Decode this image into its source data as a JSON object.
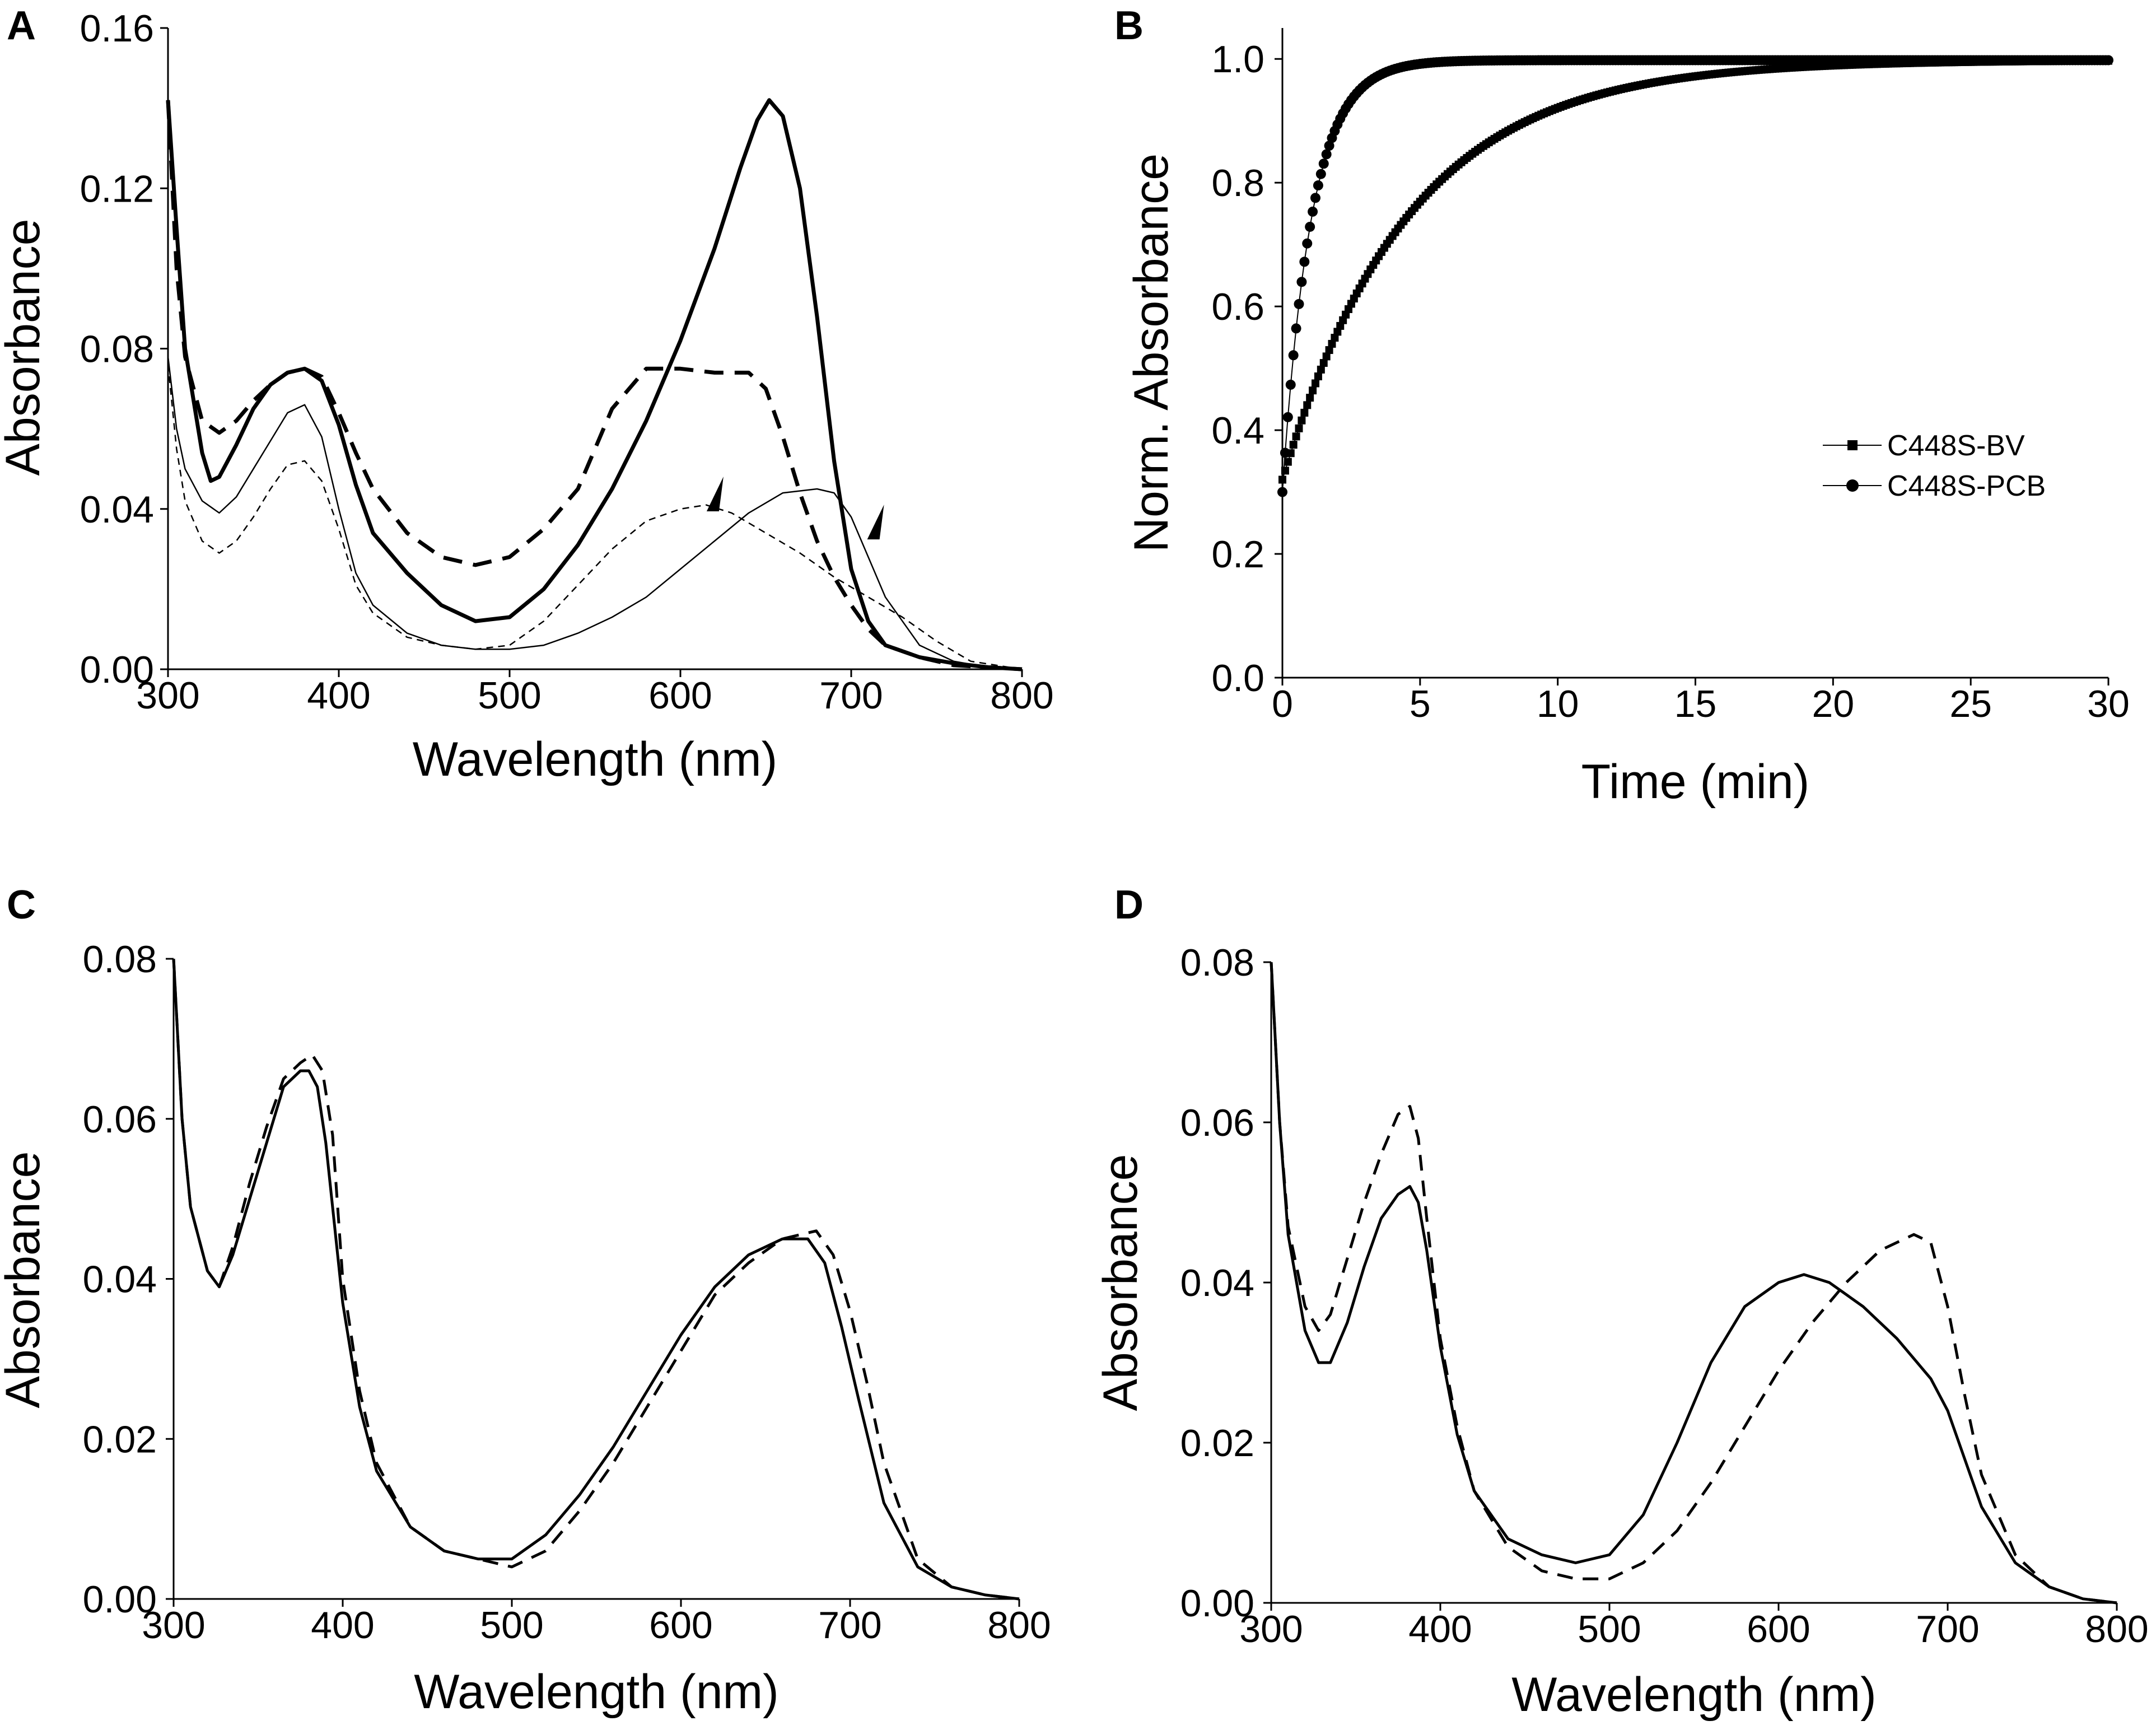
{
  "chart_data": [
    {
      "panel": "A",
      "type": "line",
      "xlabel": "Wavelength (nm)",
      "ylabel": "Absorbance",
      "xlim": [
        300,
        800
      ],
      "ylim": [
        0,
        0.16
      ],
      "xticks": [
        300,
        400,
        500,
        600,
        700,
        800
      ],
      "yticks": [
        0.0,
        0.04,
        0.08,
        0.12,
        0.16
      ],
      "xtick_labels": [
        "300",
        "400",
        "500",
        "600",
        "700",
        "800"
      ],
      "ytick_labels": [
        "0.00",
        "0.04",
        "0.08",
        "0.12",
        "0.16"
      ],
      "series": [
        {
          "name": "thick solid",
          "style": "thick-solid",
          "x": [
            300,
            305,
            310,
            320,
            325,
            330,
            340,
            350,
            360,
            370,
            380,
            390,
            400,
            410,
            420,
            440,
            460,
            480,
            500,
            520,
            540,
            560,
            580,
            600,
            620,
            635,
            645,
            652,
            660,
            670,
            680,
            690,
            700,
            710,
            720,
            740,
            760,
            780,
            800
          ],
          "y": [
            0.142,
            0.11,
            0.08,
            0.054,
            0.047,
            0.048,
            0.056,
            0.065,
            0.071,
            0.074,
            0.075,
            0.072,
            0.061,
            0.046,
            0.034,
            0.024,
            0.016,
            0.012,
            0.013,
            0.02,
            0.031,
            0.045,
            0.062,
            0.082,
            0.105,
            0.125,
            0.137,
            0.142,
            0.138,
            0.12,
            0.088,
            0.052,
            0.025,
            0.012,
            0.006,
            0.003,
            0.0015,
            0.0005,
            0
          ]
        },
        {
          "name": "thick dashed",
          "style": "thick-dashed",
          "x": [
            300,
            305,
            310,
            320,
            330,
            340,
            350,
            360,
            370,
            380,
            390,
            400,
            410,
            420,
            440,
            460,
            480,
            500,
            520,
            540,
            560,
            580,
            600,
            620,
            640,
            650,
            660,
            670,
            680,
            690,
            700,
            710,
            720,
            740,
            760,
            780,
            800
          ],
          "y": [
            0.142,
            0.1,
            0.078,
            0.062,
            0.059,
            0.062,
            0.067,
            0.071,
            0.074,
            0.075,
            0.073,
            0.064,
            0.054,
            0.045,
            0.034,
            0.028,
            0.026,
            0.028,
            0.035,
            0.045,
            0.065,
            0.075,
            0.075,
            0.074,
            0.074,
            0.07,
            0.058,
            0.044,
            0.032,
            0.023,
            0.016,
            0.01,
            0.006,
            0.003,
            0.001,
            0.0005,
            0
          ]
        },
        {
          "name": "thin solid",
          "style": "thin-solid",
          "x": [
            300,
            305,
            310,
            320,
            330,
            340,
            350,
            360,
            370,
            380,
            390,
            400,
            410,
            420,
            440,
            460,
            480,
            500,
            520,
            540,
            560,
            580,
            600,
            620,
            640,
            660,
            680,
            690,
            700,
            710,
            720,
            740,
            760,
            780,
            800
          ],
          "y": [
            0.078,
            0.06,
            0.05,
            0.042,
            0.039,
            0.043,
            0.05,
            0.057,
            0.064,
            0.066,
            0.058,
            0.04,
            0.024,
            0.016,
            0.009,
            0.006,
            0.005,
            0.005,
            0.006,
            0.009,
            0.013,
            0.018,
            0.025,
            0.032,
            0.039,
            0.044,
            0.045,
            0.044,
            0.038,
            0.028,
            0.018,
            0.006,
            0.002,
            0.0005,
            0
          ]
        },
        {
          "name": "thin dashed",
          "style": "thin-dashed",
          "x": [
            300,
            305,
            310,
            320,
            330,
            340,
            350,
            360,
            370,
            380,
            390,
            400,
            410,
            420,
            440,
            460,
            480,
            500,
            520,
            540,
            560,
            580,
            600,
            615,
            630,
            650,
            670,
            690,
            710,
            730,
            750,
            770,
            800
          ],
          "y": [
            0.076,
            0.055,
            0.042,
            0.032,
            0.029,
            0.032,
            0.038,
            0.045,
            0.051,
            0.052,
            0.047,
            0.035,
            0.021,
            0.014,
            0.008,
            0.006,
            0.005,
            0.006,
            0.012,
            0.021,
            0.03,
            0.037,
            0.04,
            0.041,
            0.039,
            0.034,
            0.029,
            0.023,
            0.018,
            0.013,
            0.007,
            0.002,
            0
          ]
        }
      ],
      "annotations": [
        {
          "text": "arrowhead",
          "x": 618,
          "y": 0.045
        },
        {
          "text": "arrowhead",
          "x": 712,
          "y": 0.038
        }
      ]
    },
    {
      "panel": "B",
      "type": "scatter",
      "xlabel": "Time (min)",
      "ylabel": "Norm. Absorbance",
      "xlim": [
        0,
        30
      ],
      "ylim": [
        0,
        1.05
      ],
      "xticks": [
        0,
        5,
        10,
        15,
        20,
        25,
        30
      ],
      "yticks": [
        0.0,
        0.2,
        0.4,
        0.6,
        0.8,
        1.0
      ],
      "xtick_labels": [
        "0",
        "5",
        "10",
        "15",
        "20",
        "25",
        "30"
      ],
      "ytick_labels": [
        "0.0",
        "0.2",
        "0.4",
        "0.6",
        "0.8",
        "1.0"
      ],
      "legend_position": "right-middle",
      "series": [
        {
          "name": "C448S-BV",
          "marker": "square",
          "model": "exponential",
          "y0": 0.32,
          "yinf": 0.998,
          "tau_min": 4.6,
          "t_max": 30,
          "n_points": 300
        },
        {
          "name": "C448S-PCB",
          "marker": "circle",
          "model": "exponential",
          "y0": 0.3,
          "yinf": 0.998,
          "tau_min": 1.05,
          "t_max": 30,
          "n_points": 300
        }
      ]
    },
    {
      "panel": "C",
      "type": "line",
      "xlabel": "Wavelength (nm)",
      "ylabel": "Absorbance",
      "xlim": [
        300,
        800
      ],
      "ylim": [
        0,
        0.08
      ],
      "xticks": [
        300,
        400,
        500,
        600,
        700,
        800
      ],
      "yticks": [
        0.0,
        0.02,
        0.04,
        0.06,
        0.08
      ],
      "xtick_labels": [
        "300",
        "400",
        "500",
        "600",
        "700",
        "800"
      ],
      "ytick_labels": [
        "0.00",
        "0.02",
        "0.04",
        "0.06",
        "0.08"
      ],
      "series": [
        {
          "name": "solid",
          "style": "solid",
          "x": [
            300,
            305,
            310,
            320,
            327,
            335,
            345,
            355,
            365,
            375,
            380,
            385,
            390,
            400,
            410,
            420,
            440,
            460,
            480,
            500,
            520,
            540,
            560,
            580,
            600,
            620,
            640,
            660,
            675,
            685,
            695,
            705,
            720,
            740,
            760,
            780,
            800
          ],
          "y": [
            0.08,
            0.06,
            0.049,
            0.041,
            0.039,
            0.043,
            0.05,
            0.057,
            0.064,
            0.066,
            0.066,
            0.064,
            0.057,
            0.037,
            0.024,
            0.016,
            0.009,
            0.006,
            0.005,
            0.005,
            0.008,
            0.013,
            0.019,
            0.026,
            0.033,
            0.039,
            0.043,
            0.045,
            0.045,
            0.042,
            0.034,
            0.025,
            0.012,
            0.004,
            0.0015,
            0.0005,
            0
          ]
        },
        {
          "name": "dashed",
          "style": "dashed",
          "x": [
            300,
            305,
            310,
            320,
            327,
            335,
            345,
            355,
            365,
            375,
            382,
            388,
            394,
            400,
            410,
            420,
            440,
            460,
            480,
            500,
            520,
            540,
            560,
            580,
            600,
            620,
            640,
            660,
            680,
            690,
            700,
            710,
            720,
            740,
            760,
            780,
            800
          ],
          "y": [
            0.08,
            0.06,
            0.049,
            0.041,
            0.039,
            0.044,
            0.052,
            0.059,
            0.065,
            0.067,
            0.068,
            0.066,
            0.058,
            0.04,
            0.026,
            0.017,
            0.009,
            0.006,
            0.005,
            0.004,
            0.006,
            0.011,
            0.017,
            0.024,
            0.031,
            0.038,
            0.042,
            0.045,
            0.046,
            0.043,
            0.036,
            0.027,
            0.017,
            0.005,
            0.0015,
            0.0005,
            0
          ]
        }
      ]
    },
    {
      "panel": "D",
      "type": "line",
      "xlabel": "Wavelength (nm)",
      "ylabel": "Absorbance",
      "xlim": [
        300,
        800
      ],
      "ylim": [
        0,
        0.08
      ],
      "xticks": [
        300,
        400,
        500,
        600,
        700,
        800
      ],
      "yticks": [
        0.0,
        0.02,
        0.04,
        0.06,
        0.08
      ],
      "xtick_labels": [
        "300",
        "400",
        "500",
        "600",
        "700",
        "800"
      ],
      "ytick_labels": [
        "0.00",
        "0.02",
        "0.04",
        "0.06",
        "0.08"
      ],
      "series": [
        {
          "name": "solid",
          "style": "solid",
          "x": [
            300,
            305,
            310,
            320,
            328,
            335,
            345,
            355,
            365,
            375,
            382,
            387,
            392,
            400,
            410,
            420,
            440,
            460,
            480,
            500,
            520,
            540,
            560,
            580,
            600,
            615,
            630,
            650,
            670,
            690,
            700,
            710,
            720,
            740,
            760,
            780,
            800
          ],
          "y": [
            0.08,
            0.06,
            0.046,
            0.034,
            0.03,
            0.03,
            0.035,
            0.042,
            0.048,
            0.051,
            0.052,
            0.05,
            0.044,
            0.032,
            0.021,
            0.014,
            0.008,
            0.006,
            0.005,
            0.006,
            0.011,
            0.02,
            0.03,
            0.037,
            0.04,
            0.041,
            0.04,
            0.037,
            0.033,
            0.028,
            0.024,
            0.018,
            0.012,
            0.005,
            0.002,
            0.0005,
            0
          ]
        },
        {
          "name": "dashed",
          "style": "dashed",
          "x": [
            300,
            305,
            310,
            320,
            328,
            335,
            345,
            355,
            365,
            375,
            382,
            387,
            392,
            400,
            410,
            420,
            440,
            460,
            480,
            500,
            520,
            540,
            560,
            580,
            600,
            620,
            640,
            660,
            680,
            690,
            700,
            710,
            720,
            740,
            760,
            780,
            800
          ],
          "y": [
            0.08,
            0.06,
            0.047,
            0.037,
            0.034,
            0.036,
            0.043,
            0.05,
            0.056,
            0.061,
            0.062,
            0.058,
            0.048,
            0.033,
            0.022,
            0.014,
            0.007,
            0.004,
            0.003,
            0.003,
            0.005,
            0.009,
            0.015,
            0.022,
            0.029,
            0.035,
            0.04,
            0.044,
            0.046,
            0.045,
            0.037,
            0.026,
            0.016,
            0.006,
            0.002,
            0.0005,
            0
          ]
        }
      ]
    }
  ]
}
